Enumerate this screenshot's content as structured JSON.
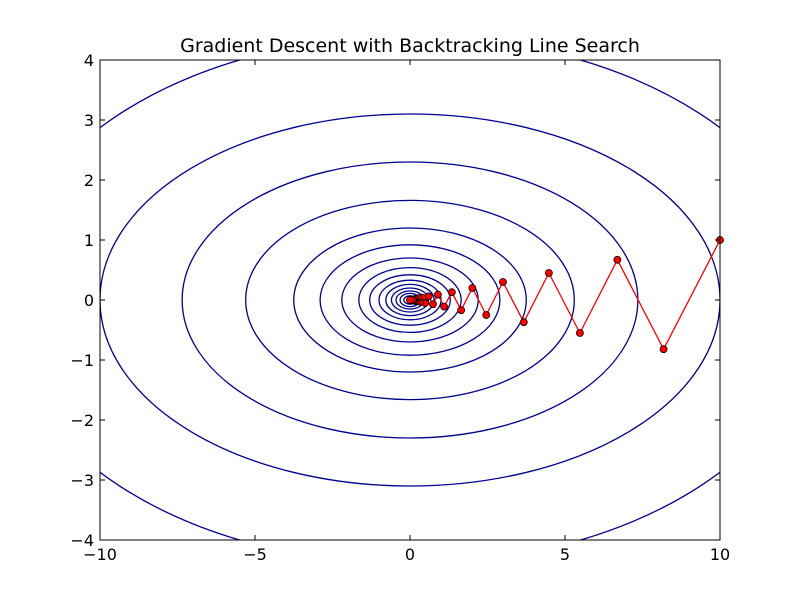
{
  "chart_data": {
    "type": "line",
    "title": "Gradient Descent with Backtracking Line Search",
    "xlabel": "",
    "ylabel": "",
    "xlim": [
      -10,
      10
    ],
    "ylim": [
      -4,
      4
    ],
    "grid": false,
    "x_ticks": [
      -10,
      -5,
      0,
      5,
      10
    ],
    "x_tick_labels": [
      "−10",
      "−5",
      "0",
      "5",
      "10"
    ],
    "y_ticks": [
      -4,
      -3,
      -2,
      -1,
      0,
      1,
      2,
      3,
      4
    ],
    "y_tick_labels": [
      "−4",
      "−3",
      "−2",
      "−1",
      "0",
      "1",
      "2",
      "3",
      "4"
    ],
    "contours": {
      "color": "#00008B",
      "ellipses": [
        {
          "a": 13.2,
          "b": 4.4
        },
        {
          "a": 10.0,
          "b": 3.1
        },
        {
          "a": 7.35,
          "b": 2.3
        },
        {
          "a": 5.3,
          "b": 1.66
        },
        {
          "a": 3.75,
          "b": 1.2
        },
        {
          "a": 2.9,
          "b": 0.92
        },
        {
          "a": 2.2,
          "b": 0.7
        },
        {
          "a": 1.65,
          "b": 0.54
        },
        {
          "a": 1.3,
          "b": 0.42
        },
        {
          "a": 1.0,
          "b": 0.33
        },
        {
          "a": 0.78,
          "b": 0.26
        },
        {
          "a": 0.6,
          "b": 0.2
        },
        {
          "a": 0.45,
          "b": 0.15
        },
        {
          "a": 0.32,
          "b": 0.11
        },
        {
          "a": 0.2,
          "b": 0.07
        },
        {
          "a": 0.1,
          "b": 0.035
        }
      ]
    },
    "series": [
      {
        "color": "#ff0000",
        "marker_color": "#ff0000",
        "x": [
          10,
          8.18,
          6.69,
          5.48,
          4.48,
          3.67,
          3.0,
          2.46,
          2.01,
          1.65,
          1.35,
          1.1,
          0.9,
          0.74,
          0.6,
          0.49,
          0.4,
          0.33,
          0.27,
          0.22,
          0.18,
          0.15,
          0.12,
          0.1,
          0.08,
          0.0
        ],
        "y": [
          1.0,
          -0.82,
          0.67,
          -0.55,
          0.45,
          -0.37,
          0.3,
          -0.25,
          0.2,
          -0.17,
          0.13,
          -0.11,
          0.09,
          -0.07,
          0.06,
          -0.05,
          0.04,
          -0.03,
          0.03,
          -0.02,
          0.02,
          -0.015,
          0.01,
          -0.01,
          0.005,
          0.0
        ]
      }
    ]
  }
}
